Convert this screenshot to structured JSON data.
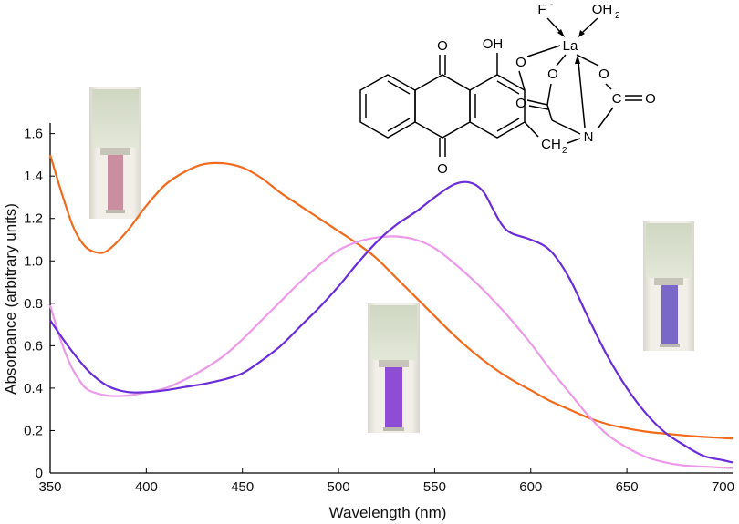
{
  "chart_data": {
    "type": "line",
    "title": "",
    "xlabel": "Wavelength (nm)",
    "ylabel": "Absorbance (arbitrary units)",
    "xlim": [
      350,
      705
    ],
    "ylim": [
      0,
      1.65
    ],
    "xticks": [
      350,
      400,
      450,
      500,
      550,
      600,
      650,
      700
    ],
    "yticks": [
      0,
      0.2,
      0.4,
      0.6,
      0.8,
      1.0,
      1.2,
      1.4,
      1.6
    ],
    "ytick_labels": [
      "0",
      "0.2",
      "0.4",
      "0.6",
      "0.8",
      "1.0",
      "1.2",
      "1.4",
      "1.6"
    ],
    "grid": false,
    "series": [
      {
        "color": "#f26a1b",
        "points": [
          [
            350,
            1.5
          ],
          [
            356,
            1.32
          ],
          [
            362,
            1.16
          ],
          [
            368,
            1.07
          ],
          [
            374,
            1.04
          ],
          [
            380,
            1.05
          ],
          [
            390,
            1.14
          ],
          [
            400,
            1.26
          ],
          [
            410,
            1.36
          ],
          [
            420,
            1.42
          ],
          [
            430,
            1.456
          ],
          [
            440,
            1.46
          ],
          [
            450,
            1.44
          ],
          [
            460,
            1.39
          ],
          [
            470,
            1.32
          ],
          [
            480,
            1.26
          ],
          [
            490,
            1.2
          ],
          [
            500,
            1.14
          ],
          [
            510,
            1.08
          ],
          [
            520,
            1.01
          ],
          [
            530,
            0.92
          ],
          [
            540,
            0.83
          ],
          [
            550,
            0.74
          ],
          [
            560,
            0.65
          ],
          [
            570,
            0.57
          ],
          [
            580,
            0.5
          ],
          [
            590,
            0.44
          ],
          [
            600,
            0.39
          ],
          [
            610,
            0.34
          ],
          [
            620,
            0.3
          ],
          [
            630,
            0.26
          ],
          [
            640,
            0.23
          ],
          [
            650,
            0.21
          ],
          [
            660,
            0.195
          ],
          [
            670,
            0.185
          ],
          [
            680,
            0.177
          ],
          [
            690,
            0.17
          ],
          [
            700,
            0.165
          ],
          [
            705,
            0.163
          ]
        ]
      },
      {
        "color": "#eb99e8",
        "points": [
          [
            350,
            0.79
          ],
          [
            355,
            0.64
          ],
          [
            360,
            0.52
          ],
          [
            365,
            0.44
          ],
          [
            370,
            0.39
          ],
          [
            380,
            0.365
          ],
          [
            390,
            0.365
          ],
          [
            400,
            0.38
          ],
          [
            410,
            0.4
          ],
          [
            420,
            0.44
          ],
          [
            430,
            0.49
          ],
          [
            440,
            0.55
          ],
          [
            450,
            0.63
          ],
          [
            460,
            0.72
          ],
          [
            470,
            0.81
          ],
          [
            480,
            0.9
          ],
          [
            490,
            0.98
          ],
          [
            500,
            1.05
          ],
          [
            510,
            1.09
          ],
          [
            520,
            1.11
          ],
          [
            530,
            1.115
          ],
          [
            540,
            1.1
          ],
          [
            550,
            1.06
          ],
          [
            560,
            0.99
          ],
          [
            570,
            0.91
          ],
          [
            580,
            0.82
          ],
          [
            590,
            0.72
          ],
          [
            600,
            0.61
          ],
          [
            610,
            0.49
          ],
          [
            620,
            0.38
          ],
          [
            630,
            0.27
          ],
          [
            640,
            0.18
          ],
          [
            650,
            0.12
          ],
          [
            660,
            0.075
          ],
          [
            670,
            0.05
          ],
          [
            680,
            0.035
          ],
          [
            690,
            0.03
          ],
          [
            700,
            0.025
          ],
          [
            705,
            0.023
          ]
        ]
      },
      {
        "color": "#6a2cd9",
        "points": [
          [
            350,
            0.72
          ],
          [
            360,
            0.59
          ],
          [
            370,
            0.48
          ],
          [
            380,
            0.41
          ],
          [
            390,
            0.382
          ],
          [
            400,
            0.381
          ],
          [
            410,
            0.39
          ],
          [
            420,
            0.405
          ],
          [
            430,
            0.42
          ],
          [
            440,
            0.44
          ],
          [
            450,
            0.47
          ],
          [
            460,
            0.53
          ],
          [
            470,
            0.6
          ],
          [
            480,
            0.69
          ],
          [
            490,
            0.78
          ],
          [
            500,
            0.88
          ],
          [
            510,
            0.99
          ],
          [
            520,
            1.09
          ],
          [
            530,
            1.17
          ],
          [
            540,
            1.23
          ],
          [
            550,
            1.3
          ],
          [
            560,
            1.36
          ],
          [
            568,
            1.37
          ],
          [
            575,
            1.33
          ],
          [
            580,
            1.25
          ],
          [
            585,
            1.17
          ],
          [
            590,
            1.13
          ],
          [
            600,
            1.1
          ],
          [
            610,
            1.05
          ],
          [
            620,
            0.92
          ],
          [
            630,
            0.73
          ],
          [
            640,
            0.55
          ],
          [
            650,
            0.4
          ],
          [
            660,
            0.28
          ],
          [
            670,
            0.19
          ],
          [
            680,
            0.13
          ],
          [
            690,
            0.08
          ],
          [
            700,
            0.06
          ],
          [
            705,
            0.05
          ]
        ]
      }
    ]
  },
  "structure": {
    "atoms": {
      "fluoride": "F",
      "fluoride_charge": "-",
      "water": "OH",
      "water_sub": "2",
      "lanthanum": "La",
      "o_hydroxyl": "OH",
      "o_ketone_top": "O",
      "o_ketone_bottom": "O",
      "o_phenolate": "O",
      "o_carboxylate_left": "O",
      "o_carboxylate_right": "O",
      "o_carbonyl_left": "O",
      "c_carbonyl_right": "C",
      "o_carbonyl_right": "O",
      "nitrogen": "N",
      "ch2_label": "CH",
      "ch2_sub": "2"
    }
  },
  "colors": {
    "cuvette_1_solution": "#c98fa0",
    "cuvette_2_solution": "#8f4dd6",
    "cuvette_3_solution": "#7a68c8",
    "cuvette_glass": "#e7e5da",
    "cuvette_top": "#d4dcc6"
  }
}
